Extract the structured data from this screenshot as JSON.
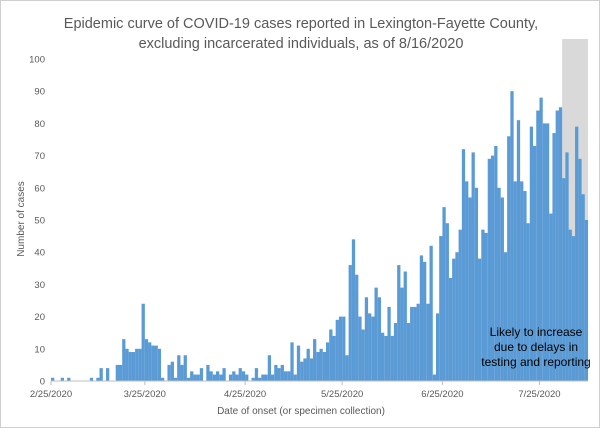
{
  "chart_data": {
    "type": "bar",
    "title_lines": [
      "Epidemic curve of COVID-19 cases reported in Lexington-Fayette County,",
      "excluding incarcerated individuals, as of 8/16/2020"
    ],
    "xlabel": "Date of onset (or specimen collection)",
    "ylabel": "Number of cases",
    "ylim": [
      0,
      100
    ],
    "y_ticks": [
      0,
      10,
      20,
      30,
      40,
      50,
      60,
      70,
      80,
      90,
      100
    ],
    "x_tick_labels": [
      "2/25/2020",
      "3/25/2020",
      "4/25/2020",
      "5/25/2020",
      "6/25/2020",
      "7/25/2020"
    ],
    "x_tick_day_index": [
      0,
      29,
      60,
      90,
      121,
      151
    ],
    "grid": false,
    "first_date": "2/25/2020",
    "bar_color": "#5b9bd5",
    "shade_color": "#d9d9d9",
    "shade_start_index": 158,
    "annotation_lines": [
      "Likely to increase",
      "due to delays in",
      "testing and reporting"
    ],
    "values": [
      1,
      0,
      0,
      1,
      0,
      1,
      0,
      0,
      0,
      0,
      0,
      0,
      1,
      0,
      1,
      4,
      0,
      4,
      0,
      0,
      5,
      5,
      13,
      10,
      9,
      9,
      10,
      10,
      24,
      13,
      12,
      11,
      11,
      10,
      1,
      0,
      5,
      6,
      1,
      8,
      5,
      8,
      1,
      3,
      2,
      2,
      4,
      0,
      5,
      3,
      2,
      3,
      2,
      4,
      0,
      2,
      3,
      2,
      4,
      3,
      2,
      0,
      1,
      4,
      1,
      2,
      2,
      8,
      2,
      5,
      4,
      5,
      3,
      3,
      12,
      2,
      11,
      6,
      7,
      10,
      7,
      13,
      9,
      10,
      9,
      12,
      16,
      14,
      19,
      20,
      20,
      8,
      36,
      44,
      33,
      20,
      16,
      26,
      21,
      20,
      29,
      26,
      15,
      14,
      23,
      14,
      18,
      36,
      29,
      34,
      18,
      23,
      23,
      24,
      39,
      37,
      24,
      42,
      2,
      21,
      45,
      54,
      49,
      32,
      38,
      40,
      47,
      72,
      62,
      57,
      71,
      60,
      38,
      47,
      46,
      69,
      70,
      73,
      60,
      57,
      40,
      76,
      90,
      62,
      81,
      62,
      59,
      49,
      79,
      73,
      84,
      88,
      80,
      80,
      52,
      77,
      84,
      85,
      63,
      71,
      47,
      45,
      79,
      69,
      58,
      50
    ]
  }
}
